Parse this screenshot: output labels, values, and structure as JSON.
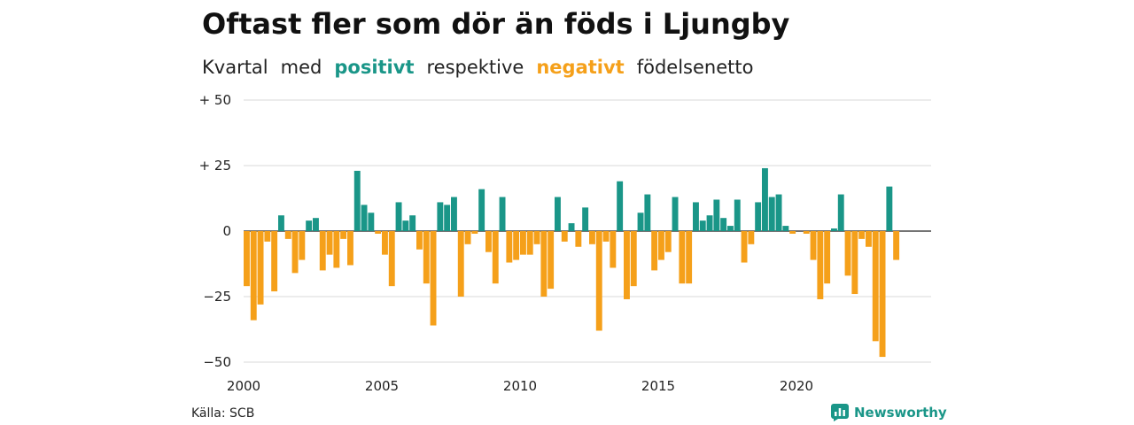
{
  "title": "Oftast fler som dör än föds i Ljungby",
  "subtitle": {
    "part1": "Kvartal",
    "part2": "med",
    "positive_word": "positivt",
    "part3": "respektive",
    "negative_word": "negativt",
    "part4": "födelsenetto"
  },
  "source": "Källa: SCB",
  "brand": {
    "name": "Newsworthy",
    "icon": "bar-chart-logo-icon"
  },
  "colors": {
    "positive": "#1a9688",
    "negative": "#f5a01a",
    "grid": "#d9d9d9"
  },
  "chart_data": {
    "type": "bar",
    "start_year": 2000,
    "periods_per_year": 4,
    "x_ticks": [
      "2000",
      "2005",
      "2010",
      "2015",
      "2020"
    ],
    "y_ticks": [
      {
        "value": 50,
        "label": "+ 50"
      },
      {
        "value": 25,
        "label": "+ 25"
      },
      {
        "value": 0,
        "label": "0"
      },
      {
        "value": -25,
        "label": "−25"
      },
      {
        "value": -50,
        "label": "−50"
      }
    ],
    "ylim": [
      -50,
      50
    ],
    "grid": true,
    "values": [
      -21,
      -34,
      -28,
      -4,
      -23,
      6,
      -3,
      -16,
      -11,
      4,
      5,
      -15,
      -9,
      -14,
      -3,
      -13,
      23,
      10,
      7,
      -1,
      -9,
      -21,
      11,
      4,
      6,
      -7,
      -20,
      -36,
      11,
      10,
      13,
      -25,
      -5,
      -1,
      16,
      -8,
      -20,
      13,
      -12,
      -11,
      -9,
      -9,
      -5,
      -25,
      -22,
      13,
      -4,
      3,
      -6,
      9,
      -5,
      -38,
      -4,
      -14,
      19,
      -26,
      -21,
      7,
      14,
      -15,
      -11,
      -8,
      13,
      -20,
      -20,
      11,
      4,
      6,
      12,
      5,
      2,
      12,
      -12,
      -5,
      11,
      24,
      13,
      14,
      2,
      -1,
      0,
      -1,
      -11,
      -26,
      -20,
      1,
      14,
      -17,
      -24,
      -3,
      -6,
      -42,
      -48,
      17,
      -11
    ]
  }
}
